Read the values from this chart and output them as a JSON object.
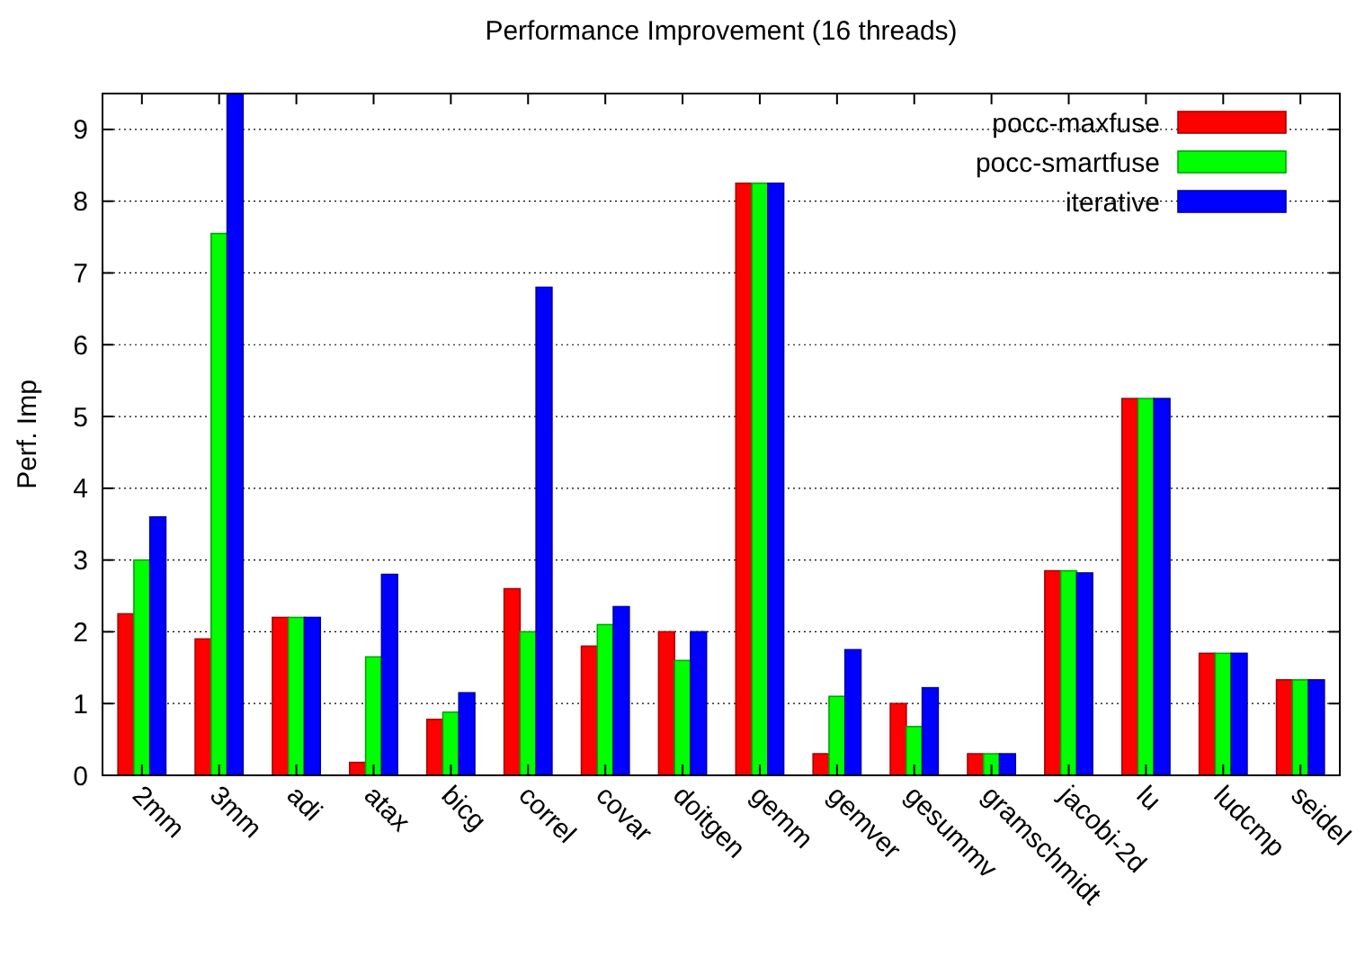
{
  "chart_data": {
    "type": "bar",
    "title": "Performance Improvement (16 threads)",
    "ylabel": "Perf. Imp",
    "categories": [
      "2mm",
      "3mm",
      "adi",
      "atax",
      "bicg",
      "correl",
      "covar",
      "doitgen",
      "gemm",
      "gemver",
      "gesummv",
      "gramschmidt",
      "jacobi-2d",
      "lu",
      "ludcmp",
      "seidel"
    ],
    "series": [
      {
        "name": "pocc-maxfuse",
        "color": "#ff0000",
        "values": [
          2.25,
          1.9,
          2.2,
          0.18,
          0.78,
          2.6,
          1.8,
          2.0,
          8.25,
          0.3,
          1.0,
          0.3,
          2.85,
          5.25,
          1.7,
          1.33
        ]
      },
      {
        "name": "pocc-smartfuse",
        "color": "#00ff00",
        "values": [
          3.0,
          7.55,
          2.2,
          1.65,
          0.88,
          2.0,
          2.1,
          1.6,
          8.25,
          1.1,
          0.68,
          0.3,
          2.85,
          5.25,
          1.7,
          1.33
        ]
      },
      {
        "name": "iterative",
        "color": "#0000ff",
        "values": [
          3.6,
          9.5,
          2.2,
          2.8,
          1.15,
          6.8,
          2.35,
          2.0,
          8.25,
          1.75,
          1.22,
          0.3,
          2.82,
          5.25,
          1.7,
          1.33
        ]
      }
    ],
    "ylim": [
      0,
      9.5
    ],
    "yticks": [
      0,
      1,
      2,
      3,
      4,
      5,
      6,
      7,
      8,
      9
    ],
    "grid": "y",
    "legend": "top right"
  }
}
